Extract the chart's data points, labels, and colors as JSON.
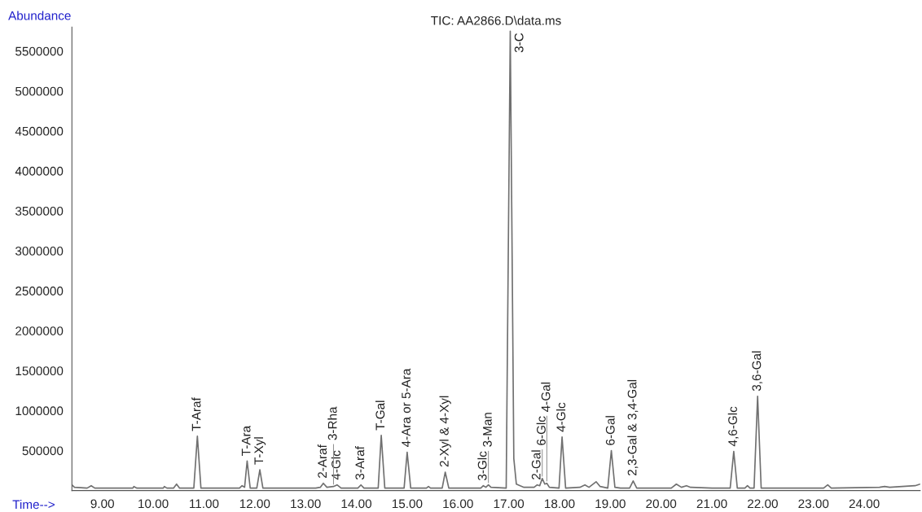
{
  "chart_data": {
    "type": "line",
    "title": "TIC: AA2866.D\\data.ms",
    "xlabel": "Time-->",
    "ylabel": "Abundance",
    "xlim": [
      8.4,
      25.1
    ],
    "ylim": [
      0,
      5800000
    ],
    "xticks": [
      {
        "value": 9,
        "label": "9.00"
      },
      {
        "value": 10,
        "label": "10.00"
      },
      {
        "value": 11,
        "label": "11.00"
      },
      {
        "value": 12,
        "label": "12.00"
      },
      {
        "value": 13,
        "label": "13.00"
      },
      {
        "value": 14,
        "label": "14.00"
      },
      {
        "value": 15,
        "label": "15.00"
      },
      {
        "value": 16,
        "label": "16.00"
      },
      {
        "value": 17,
        "label": "17.00"
      },
      {
        "value": 18,
        "label": "18.00"
      },
      {
        "value": 19,
        "label": "19.00"
      },
      {
        "value": 20,
        "label": "20.00"
      },
      {
        "value": 21,
        "label": "21.00"
      },
      {
        "value": 22,
        "label": "22.00"
      },
      {
        "value": 23,
        "label": "23.00"
      },
      {
        "value": 24,
        "label": "24.00"
      }
    ],
    "yticks": [
      500000,
      1000000,
      1500000,
      2000000,
      2500000,
      3000000,
      3500000,
      4000000,
      4500000,
      5000000,
      5500000
    ],
    "grid": false,
    "series": [
      {
        "color": "#707070",
        "x": [
          8.4,
          8.45,
          8.7,
          8.78,
          8.85,
          9.6,
          9.62,
          9.68,
          10.2,
          10.22,
          10.27,
          10.4,
          10.46,
          10.52,
          10.8,
          10.87,
          10.94,
          11.7,
          11.75,
          11.8,
          11.85,
          11.91,
          12.04,
          12.1,
          12.16,
          13.2,
          13.29,
          13.35,
          13.42,
          13.55,
          13.62,
          13.7,
          14.03,
          14.09,
          14.15,
          14.43,
          14.49,
          14.56,
          14.94,
          15.0,
          15.07,
          15.38,
          15.42,
          15.46,
          15.69,
          15.75,
          15.82,
          16.45,
          16.5,
          16.55,
          16.6,
          16.65,
          16.95,
          17.03,
          17.1,
          17.15,
          17.3,
          17.5,
          17.56,
          17.61,
          17.66,
          17.71,
          17.75,
          17.8,
          17.99,
          18.05,
          18.12,
          18.4,
          18.5,
          18.58,
          18.72,
          18.8,
          18.95,
          19.02,
          19.09,
          19.2,
          19.38,
          19.45,
          19.52,
          20.2,
          20.3,
          20.4,
          20.5,
          20.58,
          21.0,
          21.36,
          21.43,
          21.5,
          21.65,
          21.7,
          21.75,
          21.83,
          21.9,
          21.97,
          22.5,
          23.2,
          23.28,
          23.35,
          24.3,
          24.4,
          24.5,
          25.0,
          25.1
        ],
        "values": [
          70000,
          40000,
          30000,
          60000,
          30000,
          30000,
          50000,
          30000,
          30000,
          50000,
          30000,
          30000,
          80000,
          30000,
          30000,
          680000,
          30000,
          30000,
          60000,
          40000,
          370000,
          30000,
          30000,
          260000,
          30000,
          30000,
          40000,
          90000,
          40000,
          50000,
          70000,
          30000,
          30000,
          70000,
          30000,
          30000,
          690000,
          30000,
          30000,
          480000,
          30000,
          30000,
          50000,
          30000,
          30000,
          230000,
          30000,
          30000,
          60000,
          40000,
          70000,
          40000,
          30000,
          5750000,
          400000,
          80000,
          40000,
          40000,
          70000,
          60000,
          150000,
          80000,
          90000,
          40000,
          30000,
          670000,
          30000,
          40000,
          70000,
          40000,
          110000,
          50000,
          30000,
          500000,
          40000,
          30000,
          30000,
          120000,
          30000,
          30000,
          80000,
          40000,
          60000,
          40000,
          30000,
          30000,
          490000,
          30000,
          30000,
          60000,
          30000,
          30000,
          1180000,
          30000,
          30000,
          30000,
          70000,
          30000,
          40000,
          50000,
          40000,
          60000,
          80000
        ]
      }
    ],
    "annotations": [
      {
        "text": "T-Araf",
        "x": 10.87,
        "y": 680000
      },
      {
        "text": "T-Ara",
        "x": 11.85,
        "y": 370000
      },
      {
        "text": "T-Xyl",
        "x": 12.1,
        "y": 260000
      },
      {
        "text": "2-Araf",
        "x": 13.35,
        "y": 90000
      },
      {
        "text": "4-Glc",
        "x": 13.62,
        "y": 70000
      },
      {
        "text": "3-Rha",
        "x": 13.55,
        "y": 50000
      },
      {
        "text": "3-Araf",
        "x": 14.09,
        "y": 70000
      },
      {
        "text": "T-Gal",
        "x": 14.49,
        "y": 690000
      },
      {
        "text": "4-Ara or 5-Ara",
        "x": 15.0,
        "y": 480000
      },
      {
        "text": "2-Xyl & 4-Xyl",
        "x": 15.75,
        "y": 230000
      },
      {
        "text": "3-Glc",
        "x": 16.5,
        "y": 60000
      },
      {
        "text": "3-Man",
        "x": 16.6,
        "y": 70000
      },
      {
        "text": "3-C",
        "x": 17.03,
        "y": 5750000
      },
      {
        "text": "2-Gal",
        "x": 17.56,
        "y": 70000
      },
      {
        "text": "6-Glc",
        "x": 17.66,
        "y": 150000
      },
      {
        "text": "4-Gal",
        "x": 17.75,
        "y": 90000
      },
      {
        "text": "4-Glc",
        "x": 18.05,
        "y": 670000
      },
      {
        "text": "6-Gal",
        "x": 19.02,
        "y": 500000
      },
      {
        "text": "2,3-Gal & 3,4-Gal",
        "x": 19.45,
        "y": 120000
      },
      {
        "text": "4,6-Glc",
        "x": 21.43,
        "y": 490000
      },
      {
        "text": "3,6-Gal",
        "x": 21.9,
        "y": 1180000
      }
    ]
  }
}
